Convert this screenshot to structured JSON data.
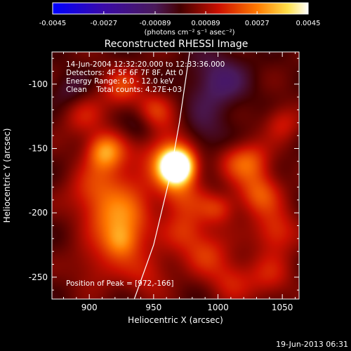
{
  "chart_data": {
    "type": "heatmap",
    "title": "Reconstructed RHESSI Image",
    "xlabel": "Heliocentric X (arcsec)",
    "ylabel": "Heliocentric Y (arcsec)",
    "xlim": [
      871,
      1063
    ],
    "ylim": [
      -267,
      -75
    ],
    "x_ticks": [
      "900",
      "950",
      "1000",
      "1050"
    ],
    "x_tick_values": [
      900,
      950,
      1000,
      1050
    ],
    "y_ticks": [
      "-100",
      "-150",
      "-200",
      "-250"
    ],
    "y_tick_values": [
      -100,
      -150,
      -200,
      -250
    ],
    "colorbar": {
      "min": -0.0045,
      "max": 0.0045,
      "tick_labels": [
        "-0.0045",
        "-0.0027",
        "-0.00089",
        "0.00089",
        "0.0027",
        "0.0045"
      ],
      "tick_values": [
        -0.0045,
        -0.0027,
        -0.00089,
        0.00089,
        0.0027,
        0.0045
      ],
      "units_label": "(photons cm⁻² s⁻¹ asec⁻²)",
      "colormap": "blue-purple-red-orange-yellow-white"
    },
    "annotations": [
      "14-Jun-2004 12:32:20.000 to 12:33:36.000",
      "Detectors: 4F 5F 6F 7F 8F, Att 0",
      "Energy Range: 6.0 - 12.0 keV",
      "Clean    Total counts: 4.27E+03"
    ],
    "peak_label": "Position of Peak = [972,-166]",
    "peak": {
      "x": 972,
      "y": -166
    },
    "limb_line": [
      {
        "x": 935,
        "y": -267
      },
      {
        "x": 950,
        "y": -225
      },
      {
        "x": 962,
        "y": -175
      },
      {
        "x": 970,
        "y": -130
      },
      {
        "x": 978,
        "y": -75
      }
    ],
    "sources": [
      {
        "x": 968,
        "y": -164,
        "v": 0.0062,
        "s": 9
      },
      {
        "x": 962,
        "y": -150,
        "v": 0.0018,
        "s": 16
      },
      {
        "x": 970,
        "y": -185,
        "v": 0.0015,
        "s": 13
      },
      {
        "x": 912,
        "y": -152,
        "v": 0.0026,
        "s": 10
      },
      {
        "x": 925,
        "y": -178,
        "v": 0.0013,
        "s": 18
      },
      {
        "x": 900,
        "y": -185,
        "v": 0.0011,
        "s": 14
      },
      {
        "x": 915,
        "y": -205,
        "v": 0.0014,
        "s": 13
      },
      {
        "x": 925,
        "y": -222,
        "v": 0.0021,
        "s": 10
      },
      {
        "x": 935,
        "y": -205,
        "v": 0.0011,
        "s": 12
      },
      {
        "x": 945,
        "y": -245,
        "v": 0.0012,
        "s": 14
      },
      {
        "x": 895,
        "y": -125,
        "v": 0.0011,
        "s": 12
      },
      {
        "x": 925,
        "y": -103,
        "v": 0.0016,
        "s": 11
      },
      {
        "x": 950,
        "y": -120,
        "v": 0.0013,
        "s": 10
      },
      {
        "x": 905,
        "y": -240,
        "v": 0.001,
        "s": 14
      },
      {
        "x": 975,
        "y": -215,
        "v": 0.0014,
        "s": 12
      },
      {
        "x": 1000,
        "y": -195,
        "v": 0.0016,
        "s": 10
      },
      {
        "x": 992,
        "y": -232,
        "v": 0.0013,
        "s": 12
      },
      {
        "x": 1010,
        "y": -252,
        "v": 0.0012,
        "s": 12
      },
      {
        "x": 1025,
        "y": -160,
        "v": 0.0017,
        "s": 11
      },
      {
        "x": 1032,
        "y": -185,
        "v": 0.0019,
        "s": 12
      },
      {
        "x": 1045,
        "y": -215,
        "v": 0.0016,
        "s": 12
      },
      {
        "x": 1050,
        "y": -130,
        "v": 0.0012,
        "s": 10
      },
      {
        "x": 1040,
        "y": -250,
        "v": 0.0011,
        "s": 13
      },
      {
        "x": 1010,
        "y": -160,
        "v": 0.0008,
        "s": 10
      },
      {
        "x": 1000,
        "y": -98,
        "v": -0.0013,
        "s": 16
      },
      {
        "x": 985,
        "y": -140,
        "v": -0.001,
        "s": 14
      },
      {
        "x": 940,
        "y": -135,
        "v": -0.0009,
        "s": 10
      },
      {
        "x": 885,
        "y": -105,
        "v": -0.0008,
        "s": 10
      },
      {
        "x": 1000,
        "y": -185,
        "v": -0.0005,
        "s": 8
      }
    ]
  },
  "footer": {
    "timestamp": "19-Jun-2013 06:31"
  }
}
